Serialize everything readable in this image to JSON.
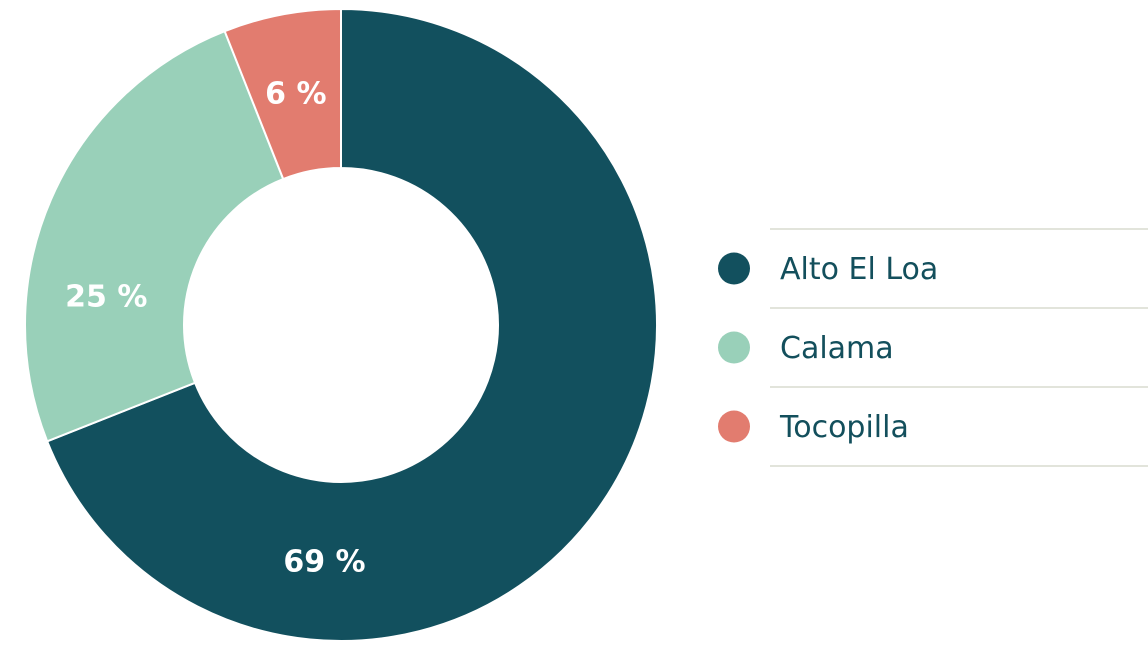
{
  "chart_data": {
    "type": "donut",
    "categories": [
      "Alto El Loa",
      "Calama",
      "Tocopilla"
    ],
    "values": [
      69,
      25,
      6
    ],
    "value_labels": [
      "69 %",
      "25 %",
      "6 %"
    ],
    "colors": [
      "#12505e",
      "#99d0b9",
      "#e27c6f"
    ],
    "legend": "right"
  }
}
